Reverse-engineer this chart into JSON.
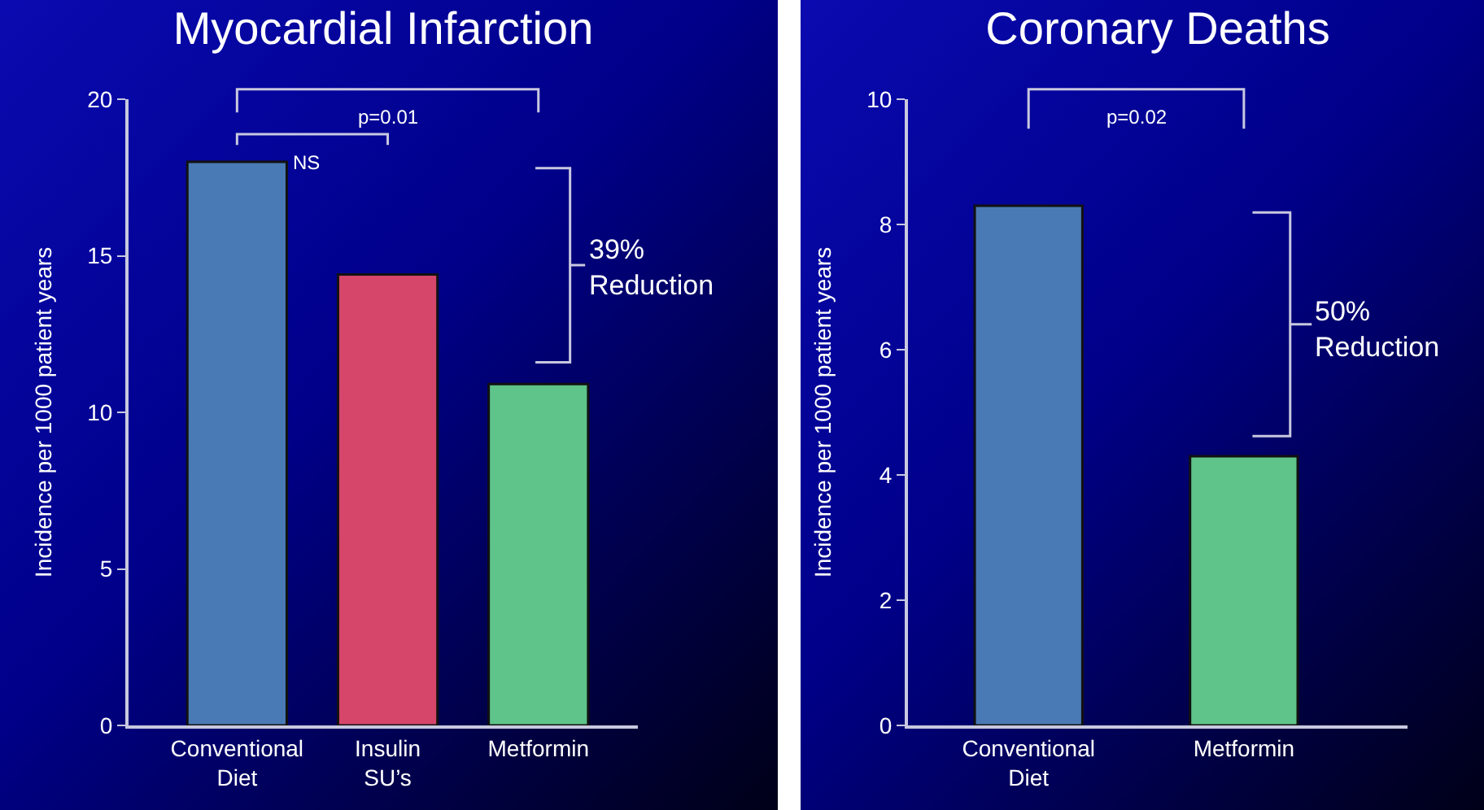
{
  "chart_data": [
    {
      "type": "bar",
      "title": "Myocardial Infarction",
      "ylabel": "Incidence per 1000 patient years",
      "categories": [
        "Conventional Diet",
        "Insulin SU’s",
        "Metformin"
      ],
      "values": [
        18.0,
        14.4,
        10.9
      ],
      "colors": [
        "#4a7ab5",
        "#d5466a",
        "#5ec48a"
      ],
      "ylim": [
        0,
        20
      ],
      "yticks": [
        0,
        5,
        10,
        15,
        20
      ],
      "annotations": [
        "p=0.01",
        "NS",
        "39% Reduction"
      ]
    },
    {
      "type": "bar",
      "title": "Coronary Deaths",
      "ylabel": "Incidence per 1000 patient years",
      "categories": [
        "Conventional Diet",
        "Metformin"
      ],
      "values": [
        8.3,
        4.3
      ],
      "colors": [
        "#4a7ab5",
        "#5ec48a"
      ],
      "ylim": [
        0,
        10
      ],
      "yticks": [
        0,
        2,
        4,
        6,
        8,
        10
      ],
      "annotations": [
        "p=0.02",
        "50% Reduction"
      ]
    }
  ]
}
